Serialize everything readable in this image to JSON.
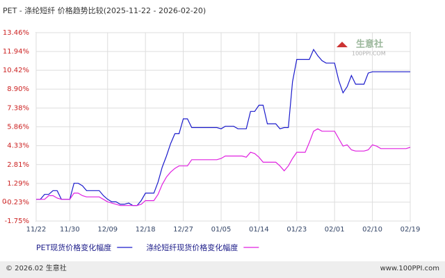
{
  "chart_data": {
    "type": "line",
    "title": "PET - 涤纶短纤 价格趋势比较(2025-11-22 - 2026-02-20)",
    "categories": [
      "11/22",
      null,
      null,
      null,
      null,
      null,
      null,
      null,
      "11/30",
      null,
      null,
      null,
      null,
      null,
      null,
      null,
      null,
      "12/09",
      null,
      null,
      null,
      null,
      null,
      null,
      null,
      null,
      "12/18",
      null,
      null,
      null,
      null,
      null,
      null,
      null,
      null,
      "12/27",
      null,
      null,
      null,
      null,
      null,
      null,
      null,
      null,
      "01/05",
      null,
      null,
      null,
      null,
      null,
      null,
      null,
      null,
      "01/14",
      null,
      null,
      null,
      null,
      null,
      null,
      null,
      null,
      "01/23",
      null,
      null,
      null,
      null,
      null,
      null,
      null,
      null,
      "02/01",
      null,
      null,
      null,
      null,
      null,
      null,
      null,
      null,
      "02/10",
      null,
      null,
      null,
      null,
      null,
      null,
      null,
      null,
      "02/19"
    ],
    "series": [
      {
        "name": "PET现货价格变化幅度",
        "color": "#1a1acc",
        "values": [
          0,
          0,
          0.4,
          0.4,
          0.7,
          0.7,
          0,
          0,
          0,
          1.3,
          1.3,
          1.1,
          0.7,
          0.7,
          0.7,
          0.7,
          0.3,
          0,
          -0.2,
          -0.2,
          -0.4,
          -0.4,
          -0.3,
          -0.5,
          -0.5,
          -0.1,
          0.5,
          0.5,
          0.5,
          1.4,
          2.6,
          3.5,
          4.5,
          5.3,
          5.3,
          6.5,
          6.5,
          5.8,
          5.8,
          5.8,
          5.8,
          5.8,
          5.8,
          5.8,
          5.7,
          5.9,
          5.9,
          5.9,
          5.7,
          5.7,
          5.7,
          7.1,
          7.1,
          7.6,
          7.6,
          6.1,
          6.1,
          6.1,
          5.7,
          5.8,
          5.8,
          9.5,
          11.3,
          11.3,
          11.3,
          11.3,
          12.1,
          11.6,
          11.2,
          11.0,
          11.0,
          11.0,
          9.6,
          8.6,
          9.1,
          10.0,
          9.3,
          9.3,
          9.3,
          10.2,
          10.3,
          10.3,
          10.3,
          10.3,
          10.3,
          10.3,
          10.3,
          10.3,
          10.3,
          10.3
        ]
      },
      {
        "name": "涤纶短纤现货价格变化幅度",
        "color": "#e020e0",
        "values": [
          0,
          0,
          0,
          0.3,
          0.3,
          0.1,
          0,
          0,
          0,
          0.5,
          0.5,
          0.3,
          0.2,
          0.2,
          0.2,
          0.2,
          0,
          -0.2,
          -0.3,
          -0.4,
          -0.5,
          -0.5,
          -0.5,
          -0.5,
          -0.5,
          -0.4,
          -0.1,
          -0.1,
          -0.1,
          0.4,
          1.2,
          1.8,
          2.2,
          2.5,
          2.7,
          2.7,
          2.7,
          3.2,
          3.2,
          3.2,
          3.2,
          3.2,
          3.2,
          3.2,
          3.3,
          3.5,
          3.5,
          3.5,
          3.5,
          3.5,
          3.4,
          3.8,
          3.7,
          3.4,
          3.0,
          3.0,
          3.0,
          3.0,
          2.7,
          2.3,
          2.7,
          3.3,
          3.8,
          3.8,
          3.8,
          4.6,
          5.5,
          5.7,
          5.5,
          5.5,
          5.5,
          5.5,
          4.9,
          4.3,
          4.4,
          4.0,
          3.9,
          3.9,
          3.9,
          4.0,
          4.4,
          4.3,
          4.1,
          4.1,
          4.1,
          4.1,
          4.1,
          4.1,
          4.1,
          4.2
        ]
      }
    ],
    "ylim": [
      -1.75,
      13.46
    ],
    "yticks": [
      {
        "value": 13.46,
        "label": "13.46%"
      },
      {
        "value": 11.94,
        "label": "11.94%"
      },
      {
        "value": 10.42,
        "label": "10.42%"
      },
      {
        "value": 8.9,
        "label": "8.90%"
      },
      {
        "value": 7.38,
        "label": "7.38%"
      },
      {
        "value": 5.86,
        "label": "5.86%"
      },
      {
        "value": 4.33,
        "label": "4.33%"
      },
      {
        "value": 2.81,
        "label": "2.81%"
      },
      {
        "value": 1.29,
        "label": "1.29%"
      },
      {
        "value": -0.23,
        "label": "-0.23%"
      },
      {
        "value": -1.75,
        "label": "-1.75%"
      }
    ],
    "zero_label": "0",
    "grid": true,
    "watermark": [
      "生意社",
      "100PPI.COM"
    ],
    "footer": {
      "left": "© 2026.02 生意社",
      "right": "www.100PPI.com"
    }
  }
}
